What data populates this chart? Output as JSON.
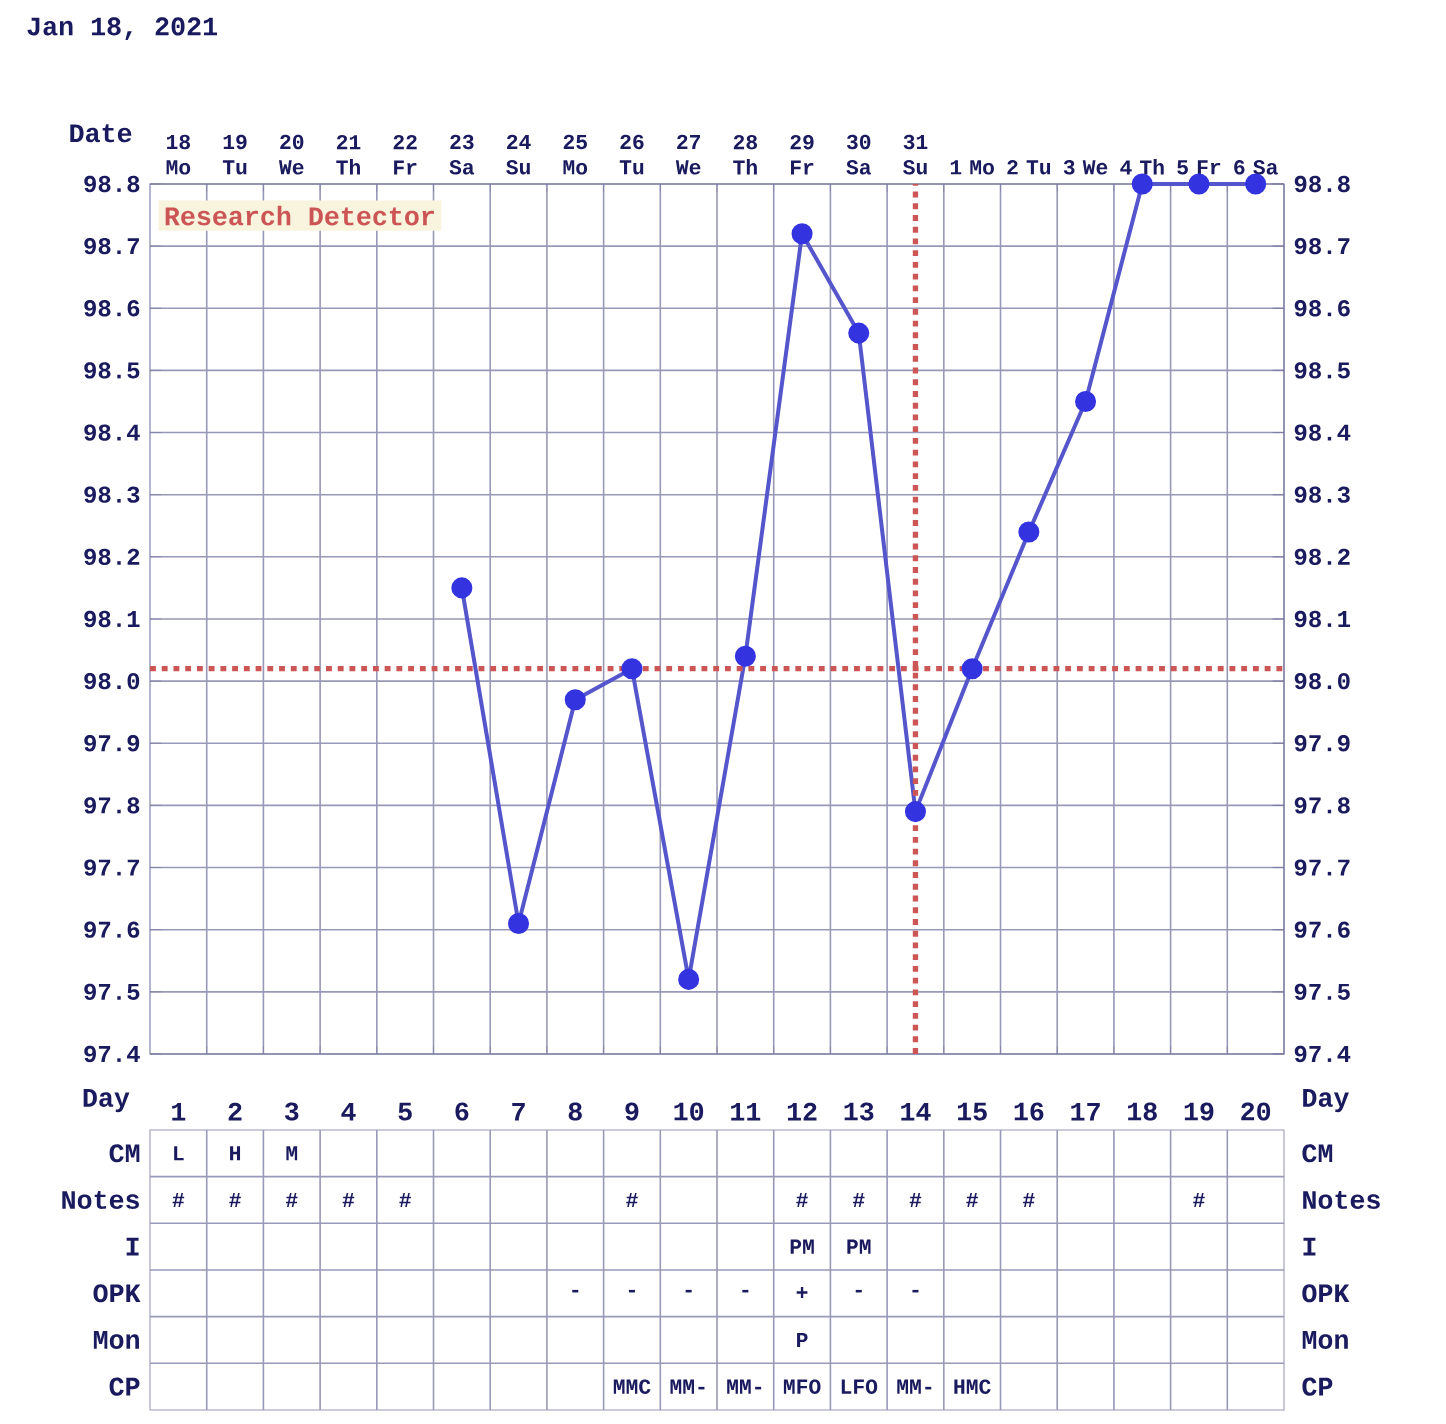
{
  "chart_data": [
    {
      "type": "line",
      "title": "Jan 18, 2021",
      "xlabel": "Date",
      "categories": [
        "18 Mo",
        "19 Tu",
        "20 We",
        "21 Th",
        "22 Fr",
        "23 Sa",
        "24 Su",
        "25 Mo",
        "26 Tu",
        "27 We",
        "28 Th",
        "29 Fr",
        "30 Sa",
        "31 Su",
        "1 Mo",
        "2 Tu",
        "3 We",
        "4 Th",
        "5 Fr",
        "6 Sa"
      ],
      "series": [
        {
          "color": "#5555cc",
          "values": [
            null,
            null,
            null,
            null,
            null,
            98.15,
            97.61,
            97.97,
            98.02,
            97.52,
            98.04,
            98.72,
            98.56,
            97.79,
            98.02,
            98.24,
            98.45,
            98.8,
            98.8,
            98.8
          ]
        }
      ],
      "ylim": [
        97.4,
        98.8
      ],
      "yticks": [
        97.4,
        97.5,
        97.6,
        97.7,
        97.8,
        97.9,
        {
          "value": 98.0,
          "label": "98.0"
        },
        98.1,
        98.2,
        98.3,
        98.4,
        98.5,
        98.6,
        98.7,
        98.8
      ],
      "y2lim": [
        97.4,
        98.8
      ],
      "y2ticks": [
        97.4,
        97.5,
        97.6,
        97.7,
        97.8,
        97.9,
        {
          "value": 98.0,
          "label": "98.0"
        },
        98.1,
        98.2,
        98.3,
        98.4,
        98.5,
        98.6,
        98.7,
        98.8
      ],
      "grid": true,
      "marker": "circle",
      "ref_lines": [
        {
          "axis": "y",
          "value": 98.02,
          "label": "Research Detector",
          "color": "#cc5555",
          "line_style": "dotted"
        },
        {
          "axis": "x",
          "value": "31 Su",
          "color": "#cc5555",
          "line_style": "dotted"
        }
      ]
    },
    {
      "type": "heatmap",
      "annotations": [
        "Day",
        "Day"
      ],
      "grid": true,
      "categories": [
        "1",
        "2",
        "3",
        "4",
        "5",
        "6",
        "7",
        "8",
        "9",
        "10",
        "11",
        "12",
        "13",
        "14",
        "15",
        "16",
        "17",
        "18",
        "19",
        "20"
      ],
      "y_categories": [
        "CM",
        "Notes",
        "I",
        "OPK",
        "Mon",
        "CP"
      ],
      "y2_categories": [
        "CM",
        "Notes",
        "I",
        "OPK",
        "Mon",
        "CP"
      ],
      "cells": [
        [
          null,
          null,
          null,
          null,
          null,
          null,
          null,
          null,
          null,
          null,
          null,
          null,
          null,
          null,
          null,
          null,
          null,
          null,
          null,
          null
        ],
        [
          null,
          null,
          null,
          null,
          null,
          null,
          null,
          null,
          null,
          null,
          null,
          null,
          null,
          null,
          null,
          null,
          null,
          null,
          null,
          null
        ],
        [
          null,
          null,
          null,
          null,
          null,
          null,
          null,
          null,
          null,
          null,
          null,
          null,
          null,
          null,
          null,
          null,
          null,
          null,
          null,
          null
        ],
        [
          null,
          null,
          null,
          null,
          null,
          null,
          null,
          null,
          null,
          null,
          null,
          null,
          null,
          null,
          null,
          null,
          null,
          null,
          null,
          null
        ],
        [
          null,
          null,
          null,
          null,
          null,
          null,
          null,
          null,
          null,
          null,
          null,
          null,
          null,
          null,
          null,
          null,
          null,
          null,
          null,
          null
        ],
        [
          null,
          null,
          null,
          null,
          null,
          null,
          null,
          null,
          null,
          null,
          null,
          null,
          null,
          null,
          null,
          null,
          null,
          null,
          null,
          null
        ]
      ],
      "cell_labels": [
        [
          "L",
          "H",
          "M",
          null,
          null,
          null,
          null,
          null,
          null,
          null,
          null,
          null,
          null,
          null,
          null,
          null,
          null,
          null,
          null,
          null
        ],
        [
          "#",
          "#",
          "#",
          "#",
          "#",
          null,
          null,
          null,
          "#",
          null,
          null,
          "#",
          "#",
          "#",
          "#",
          "#",
          null,
          null,
          "#",
          null
        ],
        [
          null,
          null,
          null,
          null,
          null,
          null,
          null,
          null,
          null,
          null,
          null,
          "PM",
          "PM",
          null,
          null,
          null,
          null,
          null,
          null,
          null
        ],
        [
          null,
          null,
          null,
          null,
          null,
          null,
          null,
          "-",
          "-",
          "-",
          "-",
          "+",
          "-",
          "-",
          null,
          null,
          null,
          null,
          null,
          null
        ],
        [
          null,
          null,
          null,
          null,
          null,
          null,
          null,
          null,
          null,
          null,
          null,
          "P",
          null,
          null,
          null,
          null,
          null,
          null,
          null,
          null
        ],
        [
          null,
          null,
          null,
          null,
          null,
          null,
          null,
          null,
          "MMC",
          "MM-",
          "MM-",
          "MFO",
          "LFO",
          "MM-",
          "HMC",
          null,
          null,
          null,
          null,
          null
        ]
      ]
    }
  ]
}
